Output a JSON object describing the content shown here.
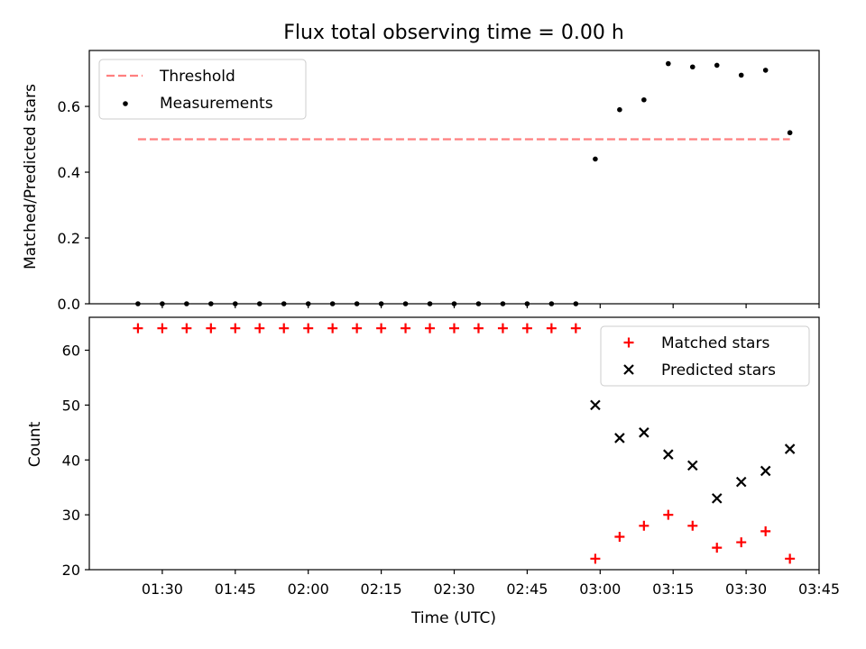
{
  "chart_data": [
    {
      "type": "scatter",
      "title": "Flux total observing time = 0.00 h",
      "xlabel": "",
      "ylabel": "Matched/Predicted stars",
      "ylim": [
        0,
        0.77
      ],
      "yticks": [
        0.0,
        0.2,
        0.4,
        0.6
      ],
      "ytick_labels": [
        "0.0",
        "0.2",
        "0.4",
        "0.6"
      ],
      "legend_position": "upper-left",
      "threshold": {
        "name": "Threshold",
        "value": 0.5,
        "x_start": "01:25",
        "x_end": "03:39",
        "color": "#ff7f7f",
        "style": "dashed"
      },
      "series": [
        {
          "name": "Measurements",
          "marker": "dot",
          "color": "#000000",
          "x": [
            "01:25",
            "01:30",
            "01:35",
            "01:40",
            "01:45",
            "01:50",
            "01:55",
            "02:00",
            "02:05",
            "02:10",
            "02:15",
            "02:20",
            "02:25",
            "02:30",
            "02:35",
            "02:40",
            "02:45",
            "02:50",
            "02:55",
            "02:59",
            "03:04",
            "03:09",
            "03:14",
            "03:19",
            "03:24",
            "03:29",
            "03:34",
            "03:39"
          ],
          "y": [
            0,
            0,
            0,
            0,
            0,
            0,
            0,
            0,
            0,
            0,
            0,
            0,
            0,
            0,
            0,
            0,
            0,
            0,
            0,
            0.44,
            0.59,
            0.62,
            0.73,
            0.72,
            0.725,
            0.695,
            0.71,
            0.52
          ]
        }
      ]
    },
    {
      "type": "scatter",
      "title": "",
      "xlabel": "Time (UTC)",
      "ylabel": "Count",
      "ylim": [
        20,
        66
      ],
      "xlim": [
        "01:15",
        "03:45"
      ],
      "yticks": [
        20,
        30,
        40,
        50,
        60
      ],
      "ytick_labels": [
        "20",
        "30",
        "40",
        "50",
        "60"
      ],
      "xticks": [
        "01:30",
        "01:45",
        "02:00",
        "02:15",
        "02:30",
        "02:45",
        "03:00",
        "03:15",
        "03:30",
        "03:45"
      ],
      "legend_position": "upper-right",
      "series": [
        {
          "name": "Matched stars",
          "marker": "plus",
          "color": "#ff0000",
          "x": [
            "01:25",
            "01:30",
            "01:35",
            "01:40",
            "01:45",
            "01:50",
            "01:55",
            "02:00",
            "02:05",
            "02:10",
            "02:15",
            "02:20",
            "02:25",
            "02:30",
            "02:35",
            "02:40",
            "02:45",
            "02:50",
            "02:55",
            "02:59",
            "03:04",
            "03:09",
            "03:14",
            "03:19",
            "03:24",
            "03:29",
            "03:34",
            "03:39"
          ],
          "y": [
            64,
            64,
            64,
            64,
            64,
            64,
            64,
            64,
            64,
            64,
            64,
            64,
            64,
            64,
            64,
            64,
            64,
            64,
            64,
            22,
            26,
            28,
            30,
            28,
            24,
            25,
            27,
            22
          ]
        },
        {
          "name": "Predicted stars",
          "marker": "x",
          "color": "#000000",
          "x": [
            "02:59",
            "03:04",
            "03:09",
            "03:14",
            "03:19",
            "03:24",
            "03:29",
            "03:34",
            "03:39"
          ],
          "y": [
            50,
            44,
            45,
            41,
            39,
            33,
            36,
            38,
            42
          ]
        }
      ]
    }
  ]
}
